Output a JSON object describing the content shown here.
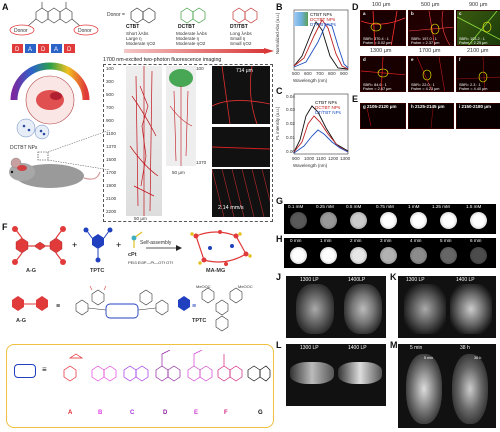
{
  "panels": [
    "A",
    "B",
    "C",
    "D",
    "E",
    "F",
    "G",
    "H",
    "J",
    "K",
    "L",
    "M"
  ],
  "a": {
    "donor": "Donor",
    "acceptor": "Donor",
    "donor_eq": "Donor =",
    "groups": [
      {
        "name": "CTBT",
        "l1": "Short λAbs",
        "l2": "Large η",
        "l3": "Moderate ηO2"
      },
      {
        "name": "DCTBT",
        "l1": "Moderate λAbs",
        "l2": "Moderate η",
        "l3": "Moderate ηO2"
      },
      {
        "name": "DT/TBT",
        "l1": "Long λAbs",
        "l2": "Small η",
        "l3": "Small ηO2"
      }
    ],
    "imaging_title": "1700 nm-excited two-photon fluorescence imaging",
    "nps_label": "DCTBT NPs",
    "scale": "50 μm",
    "depth_top": "714 μm",
    "speed": "2.14 mm/s",
    "depths": [
      "100",
      "300",
      "500",
      "700",
      "900",
      "1100",
      "1370",
      "1500",
      "1700",
      "1900",
      "2100",
      "2200"
    ],
    "depth_ticks2": [
      "100",
      "1370"
    ]
  },
  "b": {
    "ylabel": "Normalized Abs (a.u.)",
    "xlabel": "Wavelength (nm)",
    "legend": [
      "CTBT NPs",
      "DCTBT NPs",
      "DT/TBT NPs"
    ],
    "ticks": [
      "500",
      "600",
      "700",
      "800",
      "900"
    ]
  },
  "c": {
    "ylabel": "PL intensity (a.u.)",
    "xlabel": "Wavelength (nm)",
    "legend": [
      "CTBT NPs",
      "DCTBT NPs",
      "DT/TBT NPs"
    ],
    "ticks": [
      "900",
      "1000",
      "1100",
      "1200",
      "1300"
    ],
    "yticks": [
      "0.00",
      "0.01",
      "0.02",
      "0.03",
      "0.04"
    ]
  },
  "d": {
    "tiles": [
      {
        "t": "100 μm",
        "id": "a",
        "sbr": "SBR= 370.4 : 1",
        "fw": "Fwhm = 5.02 μm"
      },
      {
        "t": "500 μm",
        "id": "b",
        "sbr": "SBR= 197.0 : 1",
        "fw": "Fwhm = 2.37 μm"
      },
      {
        "t": "900 μm",
        "id": "c",
        "sbr": "SBR= 103.2 : 1",
        "fw": "Fwhm = 2.25 μm"
      },
      {
        "t": "1300 μm",
        "id": "d",
        "sbr": "SBR= 84.6 : 1",
        "fw": "Fwhm = 2.67 μm"
      },
      {
        "t": "1700 μm",
        "id": "e",
        "sbr": "SBR= 22.0 : 1",
        "fw": "Fwhm = 4.23 μm"
      },
      {
        "t": "2100 μm",
        "id": "f",
        "sbr": "SBR= 2.3 : 1",
        "fw": "Fwhm = 4.40 μm"
      }
    ]
  },
  "e": {
    "tiles": [
      {
        "t": "2105-2120 μm",
        "id": "g"
      },
      {
        "t": "2125-2145 μm",
        "id": "h"
      },
      {
        "t": "2150-2180 μm",
        "id": "i"
      }
    ]
  },
  "f": {
    "ag": "A-G",
    "tptc": "TPTC",
    "cpt": "cPt",
    "self_assembly": "Self-assembly",
    "mamg": "MA-MG",
    "equiv": "≡",
    "letters": [
      "A",
      "B",
      "C",
      "D",
      "E",
      "F",
      "G"
    ],
    "letter_colors": [
      "#e0202a",
      "#e040e0",
      "#a030e0",
      "#9020a0",
      "#d040d0",
      "#d02080",
      "#111111"
    ],
    "ligand": "PEt3 Et3P—Pt—OTf OTf",
    "ome": "MeOOC"
  },
  "g": {
    "labels": [
      "0.1 mM",
      "0.25 mM",
      "0.5 mM",
      "0.75 mM",
      "1 mM",
      "1.25 mM",
      "1.5 mM"
    ]
  },
  "h": {
    "labels": [
      "0 mm",
      "1 mm",
      "2 mm",
      "3 mm",
      "4 mm",
      "5 mm",
      "6 mm"
    ]
  },
  "j": {
    "l": "1300 LP",
    "r": "1400LP"
  },
  "k": {
    "l": "1300 LP",
    "r": "1400 LP"
  },
  "l": {
    "l": "1300 LP",
    "r": "1400 LP"
  },
  "m": {
    "l": "5 min",
    "r": "38 h",
    "s1": "5 min",
    "s2": "36 h"
  }
}
